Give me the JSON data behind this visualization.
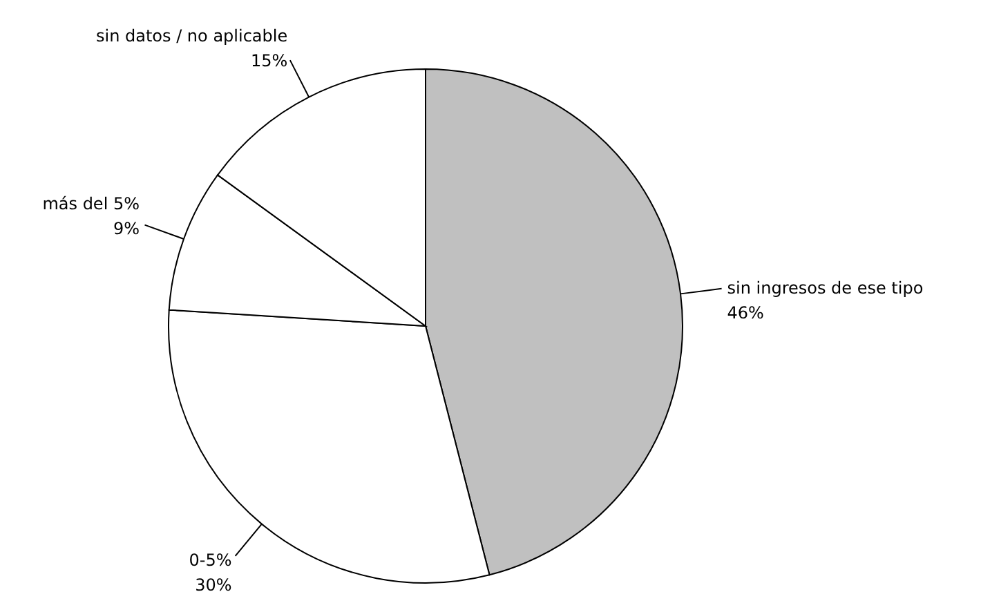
{
  "chart_data": {
    "type": "pie",
    "categories": [
      "sin ingresos de ese tipo",
      "0-5%",
      "más del 5%",
      "sin datos / no aplicable"
    ],
    "values": [
      46,
      30,
      9,
      15
    ],
    "value_labels": [
      "46%",
      "30%",
      "9%",
      "15%"
    ],
    "colors": [
      "#c0c0c0",
      "#ffffff",
      "#ffffff",
      "#ffffff"
    ]
  }
}
